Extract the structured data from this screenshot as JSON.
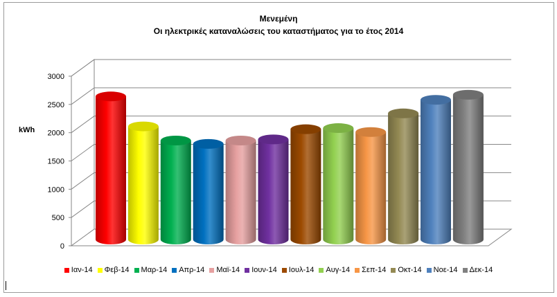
{
  "chart_data": {
    "type": "bar",
    "title": "Μενεμένη",
    "subtitle": "Οι ηλεκτρικές καταναλώσεις του καταστήματος για το έτος 2014",
    "ylabel": "kWh",
    "xlabel": "",
    "ylim": [
      0,
      3000
    ],
    "yticks": [
      0,
      500,
      1000,
      1500,
      2000,
      2500,
      3000
    ],
    "grid": true,
    "legend_position": "bottom",
    "three_d": true,
    "categories": [
      "Ιαν-14",
      "Φεβ-14",
      "Μαρ-14",
      "Απρ-14",
      "Μαϊ-14",
      "Ιουν-14",
      "Ιουλ-14",
      "Αυγ-14",
      "Σεπ-14",
      "Οκτ-14",
      "Νοε-14",
      "Δεκ-14"
    ],
    "values": [
      2580,
      2050,
      1800,
      1740,
      1800,
      1820,
      2000,
      2020,
      1950,
      2280,
      2520,
      2610
    ],
    "colors": [
      "#ff0000",
      "#ffff00",
      "#00b050",
      "#0070c0",
      "#e6a0a0",
      "#7030a0",
      "#9c4a00",
      "#92d050",
      "#f79646",
      "#948a54",
      "#4f81bd",
      "#808080"
    ]
  }
}
